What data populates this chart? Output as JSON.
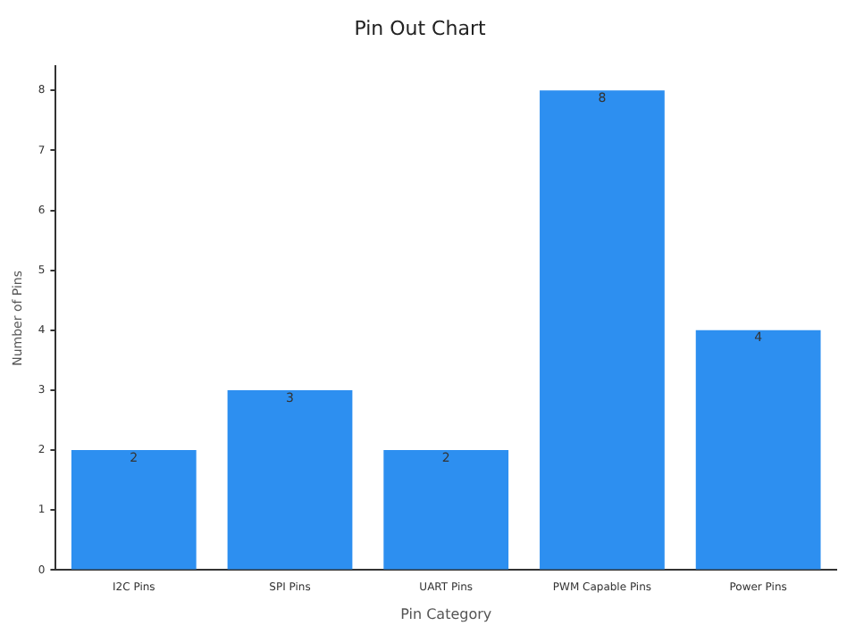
{
  "chart_data": {
    "type": "bar",
    "title": "Pin Out Chart",
    "xlabel": "Pin Category",
    "ylabel": "Number of Pins",
    "categories": [
      "I2C Pins",
      "SPI Pins",
      "UART Pins",
      "PWM Capable Pins",
      "Power Pins"
    ],
    "values": [
      2,
      3,
      2,
      8,
      4
    ],
    "color": "#2d8ff0",
    "ylim": [
      0,
      8.4
    ],
    "yticks": [
      0,
      1,
      2,
      3,
      4,
      5,
      6,
      7,
      8
    ],
    "grid": false,
    "legend": false,
    "data_labels": true
  }
}
